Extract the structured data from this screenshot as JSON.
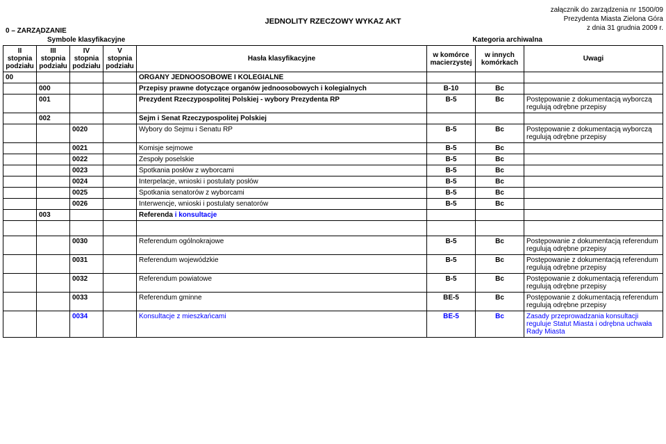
{
  "header": {
    "line1": "załącznik do zarządzenia nr 1500/09",
    "line2": "Prezydenta Miasta Zielona Góra",
    "line3": "z dnia 31 grudnia 2009 r."
  },
  "title": "JEDNOLITY RZECZOWY WYKAZ AKT",
  "section": {
    "left_code": "0 – ZARZĄDZANIE",
    "left_sub": "Symbole klasyfikacyjne",
    "right_sub": "Kategoria archiwalna"
  },
  "columns": {
    "c1": "II stopnia podziału",
    "c2": "III stopnia podziału",
    "c3": "IV stopnia podziału",
    "c4": "V stopnia podziału",
    "c5": "Hasła klasyfikacyjne",
    "c6": "w komórce macierzystej",
    "c7": "w innych komórkach",
    "c8": "Uwagi"
  },
  "rows": [
    {
      "c1": "00",
      "c2": "",
      "c3": "",
      "c4": "",
      "c5": "ORGANY JEDNOOSOBOWE I KOLEGIALNE",
      "c6": "",
      "c7": "",
      "c8": "",
      "bold5": true
    },
    {
      "c1": "",
      "c2": "000",
      "c3": "",
      "c4": "",
      "c5": "Przepisy prawne dotyczące organów jednoosobowych i kolegialnych",
      "c6": "B-10",
      "c7": "Bc",
      "c8": "",
      "bold5": true
    },
    {
      "c1": "",
      "c2": "001",
      "c3": "",
      "c4": "",
      "c5": "Prezydent Rzeczypospolitej Polskiej - wybory Prezydenta RP",
      "c6": "B-5",
      "c7": "Bc",
      "c8": " Postępowanie z dokumentacją wyborczą regulują odrębne przepisy",
      "bold5": true
    },
    {
      "c1": "",
      "c2": "002",
      "c3": "",
      "c4": "",
      "c5": "Sejm i Senat Rzeczypospolitej Polskiej",
      "c6": "",
      "c7": "",
      "c8": "",
      "bold5": true
    },
    {
      "c1": "",
      "c2": "",
      "c3": "0020",
      "c4": "",
      "c5": "Wybory do Sejmu i Senatu RP",
      "c6": "B-5",
      "c7": "Bc",
      "c8": " Postępowanie z dokumentacją wyborczą regulują odrębne przepisy"
    },
    {
      "c1": "",
      "c2": "",
      "c3": "0021",
      "c4": "",
      "c5": "Komisje sejmowe",
      "c6": "B-5",
      "c7": "Bc",
      "c8": ""
    },
    {
      "c1": "",
      "c2": "",
      "c3": "0022",
      "c4": "",
      "c5": "Zespoły poselskie",
      "c6": "B-5",
      "c7": "Bc",
      "c8": ""
    },
    {
      "c1": "",
      "c2": "",
      "c3": "0023",
      "c4": "",
      "c5": "Spotkania posłów z wyborcami",
      "c6": "B-5",
      "c7": "Bc",
      "c8": ""
    },
    {
      "c1": "",
      "c2": "",
      "c3": "0024",
      "c4": "",
      "c5": "Interpelacje, wnioski i postulaty posłów",
      "c6": "B-5",
      "c7": "Bc",
      "c8": ""
    },
    {
      "c1": "",
      "c2": "",
      "c3": "0025",
      "c4": "",
      "c5": "Spotkania senatorów z wyborcami",
      "c6": "B-5",
      "c7": "Bc",
      "c8": ""
    },
    {
      "c1": "",
      "c2": "",
      "c3": "0026",
      "c4": "",
      "c5": "Interwencje, wnioski i postulaty senatorów",
      "c6": "B-5",
      "c7": "Bc",
      "c8": ""
    },
    {
      "c1": "",
      "c2": "003",
      "c3": "",
      "c4": "",
      "c5": "Referenda i konsultacje",
      "c6": "",
      "c7": "",
      "c8": "",
      "bold5": true,
      "blue_part": "i konsultacje"
    },
    {
      "spacer": true
    },
    {
      "c1": "",
      "c2": "",
      "c3": "0030",
      "c4": "",
      "c5": "Referendum ogólnokrajowe",
      "c6": "B-5",
      "c7": "Bc",
      "c8": " Postępowanie z dokumentacją referendum regulują odrębne przepisy"
    },
    {
      "c1": "",
      "c2": "",
      "c3": "0031",
      "c4": "",
      "c5": "Referendum wojewódzkie",
      "c6": "B-5",
      "c7": "Bc",
      "c8": " Postępowanie z dokumentacją referendum regulują odrębne przepisy"
    },
    {
      "c1": "",
      "c2": "",
      "c3": "0032",
      "c4": "",
      "c5": "Referendum powiatowe",
      "c6": "B-5",
      "c7": "Bc",
      "c8": " Postępowanie z dokumentacją referendum regulują odrębne przepisy"
    },
    {
      "c1": "",
      "c2": "",
      "c3": "0033",
      "c4": "",
      "c5": "Referendum gminne",
      "c6": "BE-5",
      "c7": "Bc",
      "c8": " Postępowanie z dokumentacją referendum regulują odrębne przepisy"
    },
    {
      "c1": "",
      "c2": "",
      "c3": "0034",
      "c4": "",
      "c5": "Konsultacje z mieszkańcami",
      "c6": "BE-5",
      "c7": "Bc",
      "c8": "Zasady przeprowadzania konsultacji reguluje Statut Miasta i odrębna uchwała Rady Miasta",
      "blue3": true,
      "blue5": true,
      "blue6": true,
      "blue7": true,
      "blue8": true
    }
  ],
  "colors": {
    "text": "#000000",
    "link_blue": "#0000ff",
    "background": "#ffffff",
    "border": "#000000"
  }
}
